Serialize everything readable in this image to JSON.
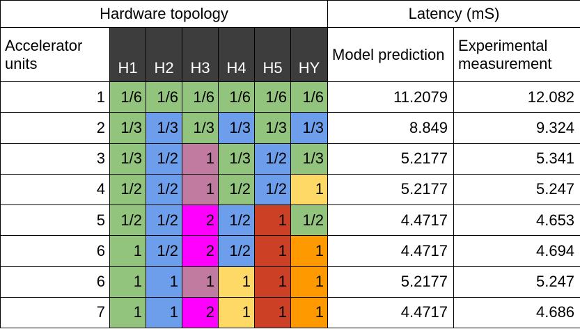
{
  "headers": {
    "hardware_topology": "Hardware topology",
    "latency": "Latency (mS)",
    "accelerator_units": "Accelerator units",
    "hw_columns": [
      "H1",
      "H2",
      "H3",
      "H4",
      "H5",
      "HY"
    ],
    "model_prediction": "Model prediction",
    "experimental_measurement": "Experimental measurement"
  },
  "colors": {
    "green": "#93c47d",
    "blue": "#6d9eeb",
    "mauve": "#c27ba0",
    "magenta": "#ff00ff",
    "yellow": "#ffd966",
    "red": "#cc4125",
    "orange": "#ff9900",
    "header_dark": "#3d3d3d"
  },
  "rows": [
    {
      "units": "1",
      "cells": [
        {
          "v": "1/6",
          "c": "green"
        },
        {
          "v": "1/6",
          "c": "green"
        },
        {
          "v": "1/6",
          "c": "green"
        },
        {
          "v": "1/6",
          "c": "green"
        },
        {
          "v": "1/6",
          "c": "green"
        },
        {
          "v": "1/6",
          "c": "green"
        }
      ],
      "model": "11.2079",
      "experimental": "12.082"
    },
    {
      "units": "2",
      "cells": [
        {
          "v": "1/3",
          "c": "green"
        },
        {
          "v": "1/3",
          "c": "blue"
        },
        {
          "v": "1/3",
          "c": "green"
        },
        {
          "v": "1/3",
          "c": "blue"
        },
        {
          "v": "1/3",
          "c": "green"
        },
        {
          "v": "1/3",
          "c": "blue"
        }
      ],
      "model": "8.849",
      "experimental": "9.324"
    },
    {
      "units": "3",
      "cells": [
        {
          "v": "1/3",
          "c": "green"
        },
        {
          "v": "1/2",
          "c": "blue"
        },
        {
          "v": "1",
          "c": "mauve"
        },
        {
          "v": "1/3",
          "c": "green"
        },
        {
          "v": "1/2",
          "c": "blue"
        },
        {
          "v": "1/3",
          "c": "green"
        }
      ],
      "model": "5.2177",
      "experimental": "5.341"
    },
    {
      "units": "4",
      "cells": [
        {
          "v": "1/2",
          "c": "green"
        },
        {
          "v": "1/2",
          "c": "blue"
        },
        {
          "v": "1",
          "c": "mauve"
        },
        {
          "v": "1/2",
          "c": "green"
        },
        {
          "v": "1/2",
          "c": "blue"
        },
        {
          "v": "1",
          "c": "yellow"
        }
      ],
      "model": "5.2177",
      "experimental": "5.247"
    },
    {
      "units": "5",
      "cells": [
        {
          "v": "1/2",
          "c": "green"
        },
        {
          "v": "1/2",
          "c": "blue"
        },
        {
          "v": "2",
          "c": "magenta"
        },
        {
          "v": "1/2",
          "c": "blue"
        },
        {
          "v": "1",
          "c": "red"
        },
        {
          "v": "1/2",
          "c": "green"
        }
      ],
      "model": "4.4717",
      "experimental": "4.653"
    },
    {
      "units": "6",
      "cells": [
        {
          "v": "1",
          "c": "green"
        },
        {
          "v": "1/2",
          "c": "blue"
        },
        {
          "v": "2",
          "c": "magenta"
        },
        {
          "v": "1/2",
          "c": "blue"
        },
        {
          "v": "1",
          "c": "red"
        },
        {
          "v": "1",
          "c": "orange"
        }
      ],
      "model": "4.4717",
      "experimental": "4.694"
    },
    {
      "units": "6",
      "cells": [
        {
          "v": "1",
          "c": "green"
        },
        {
          "v": "1",
          "c": "blue"
        },
        {
          "v": "1",
          "c": "mauve"
        },
        {
          "v": "1",
          "c": "yellow"
        },
        {
          "v": "1",
          "c": "red"
        },
        {
          "v": "1",
          "c": "orange"
        }
      ],
      "model": "5.2177",
      "experimental": "5.247"
    },
    {
      "units": "7",
      "cells": [
        {
          "v": "1",
          "c": "green"
        },
        {
          "v": "1",
          "c": "blue"
        },
        {
          "v": "2",
          "c": "magenta"
        },
        {
          "v": "1",
          "c": "yellow"
        },
        {
          "v": "1",
          "c": "red"
        },
        {
          "v": "1",
          "c": "orange"
        }
      ],
      "model": "4.4717",
      "experimental": "4.686"
    }
  ]
}
